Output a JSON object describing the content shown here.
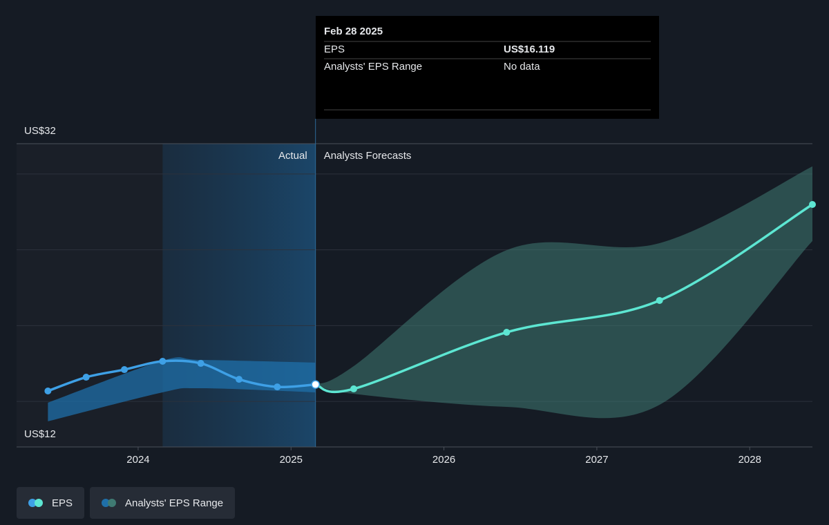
{
  "chart_data": {
    "type": "line",
    "annotations": {
      "actual": "Actual",
      "forecast": "Analysts Forecasts"
    },
    "tooltip": {
      "date": "Feb 28 2025",
      "rows": [
        {
          "label": "EPS",
          "value": "US$16.119"
        },
        {
          "label": "Analysts' EPS Range",
          "value": "No data"
        }
      ]
    },
    "xlim": [
      2023.205,
      2028.41
    ],
    "xticks": [
      2024,
      2025,
      2026,
      2027,
      2028
    ],
    "ylim": [
      12,
      32
    ],
    "yticks": [
      {
        "value": 12,
        "label": "US$12"
      },
      {
        "value": 15,
        "label": null
      },
      {
        "value": 20,
        "label": null
      },
      {
        "value": 25,
        "label": null
      },
      {
        "value": 30,
        "label": null
      },
      {
        "value": 32,
        "label": "US$32"
      }
    ],
    "grid": true,
    "series": [
      {
        "name": "EPS",
        "color": "#3ea0e6",
        "forecast_color": "#5de6d2",
        "x": [
          2023.41,
          2023.66,
          2023.91,
          2024.16,
          2024.41,
          2024.66,
          2024.91,
          2025.16
        ],
        "values": [
          15.69,
          16.6,
          17.1,
          17.65,
          17.51,
          16.46,
          15.96,
          16.119
        ],
        "forecast_x": [
          2025.16,
          2025.41,
          2026.41,
          2027.41,
          2028.41
        ],
        "forecast_values": [
          16.119,
          15.83,
          19.56,
          21.66,
          27.99
        ]
      },
      {
        "name": "Analysts' EPS Range",
        "color": "#1f6fa8",
        "forecast_color": "#3f7a72",
        "x": [
          2023.41,
          2024.16,
          2024.41,
          2025.16
        ],
        "low": [
          13.69,
          15.6,
          15.87,
          15.6
        ],
        "high": [
          14.92,
          17.69,
          17.74,
          17.56
        ],
        "forecast_x": [
          2025.16,
          2025.41,
          2026.41,
          2027.41,
          2028.41
        ],
        "forecast_low": [
          16.119,
          15.5,
          14.64,
          14.78,
          25.58
        ],
        "forecast_high": [
          16.119,
          17.33,
          24.98,
          25.44,
          30.5
        ]
      }
    ]
  }
}
